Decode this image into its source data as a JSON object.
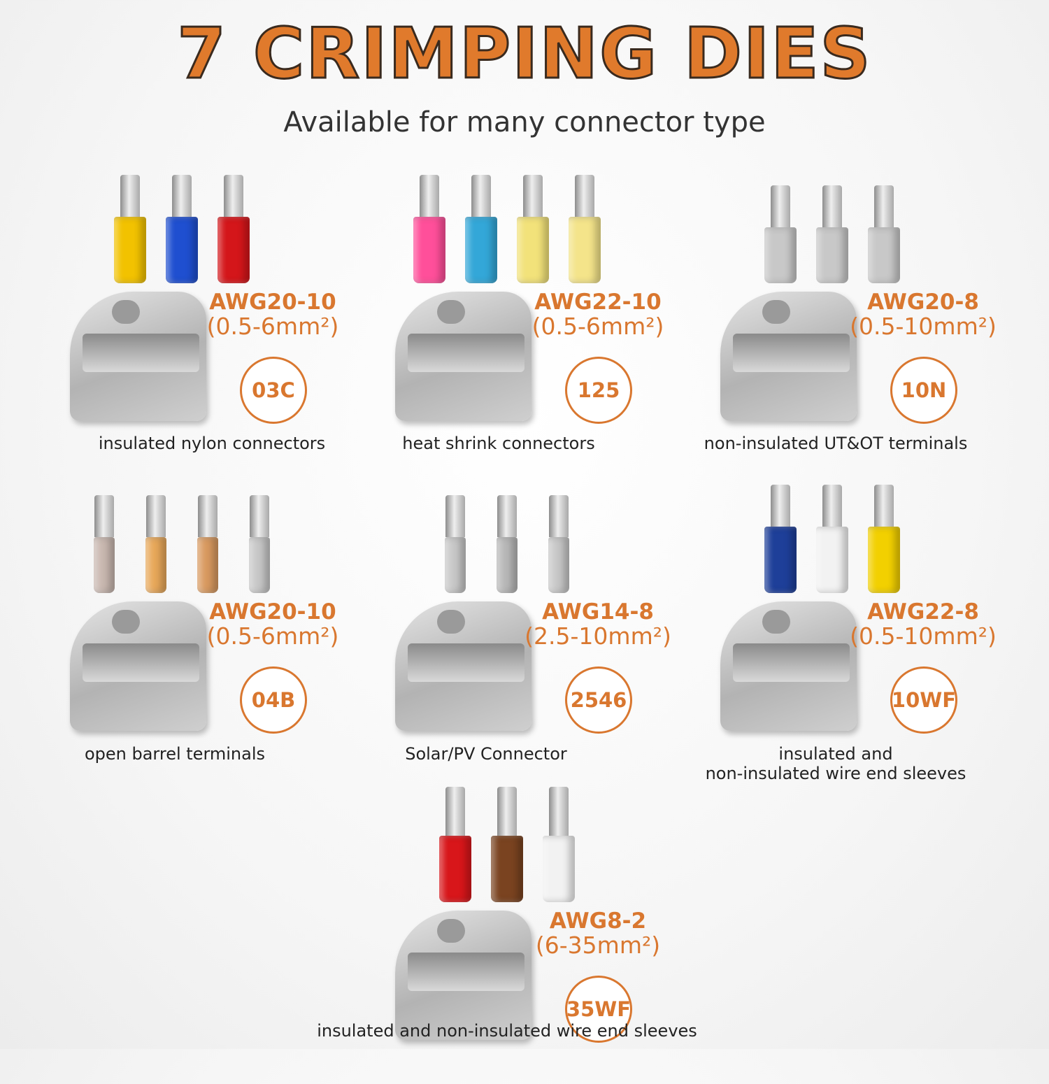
{
  "title": "7 CRIMPING DIES",
  "subtitle": "Available for many connector type",
  "accent_color": "#d9772f",
  "dies": [
    {
      "awg": "AWG20-10",
      "mm": "(0.5-6mm²)",
      "code": "03C",
      "caption": "insulated nylon connectors",
      "connectors": [
        "#f2c200",
        "#1f4fd0",
        "#d4161a"
      ]
    },
    {
      "awg": "AWG22-10",
      "mm": "(0.5-6mm²)",
      "code": "125",
      "caption": "heat shrink connectors",
      "connectors": [
        "#ff4f9a",
        "#33a7d8",
        "#f2e27a",
        "#f4e48a"
      ]
    },
    {
      "awg": "AWG20-8",
      "mm": "(0.5-10mm²)",
      "code": "10N",
      "caption": "non-insulated UT&OT terminals",
      "connectors": [
        "#c8c8c8",
        "#c8c8c8",
        "#c8c8c8"
      ]
    },
    {
      "awg": "AWG20-10",
      "mm": "(0.5-6mm²)",
      "code": "04B",
      "caption": "open barrel terminals",
      "connectors": [
        "#c9b8b0",
        "#e8a85a",
        "#d99a60",
        "#c8c8c8"
      ]
    },
    {
      "awg": "AWG14-8",
      "mm": "(2.5-10mm²)",
      "code": "2546",
      "caption": "Solar/PV Connector",
      "connectors": [
        "#c8c8c8",
        "#b8b8b8",
        "#c8c8c8"
      ]
    },
    {
      "awg": "AWG22-8",
      "mm": "(0.5-10mm²)",
      "code": "10WF",
      "caption": "insulated and\nnon-insulated wire end sleeves",
      "connectors": [
        "#1e3f99",
        "#f2f2f2",
        "#f2d000"
      ]
    },
    {
      "awg": "AWG8-2",
      "mm": "(6-35mm²)",
      "code": "35WF",
      "caption": "insulated and non-insulated wire end sleeves",
      "connectors": [
        "#d8161a",
        "#7a4320",
        "#f2f2f2"
      ]
    }
  ]
}
